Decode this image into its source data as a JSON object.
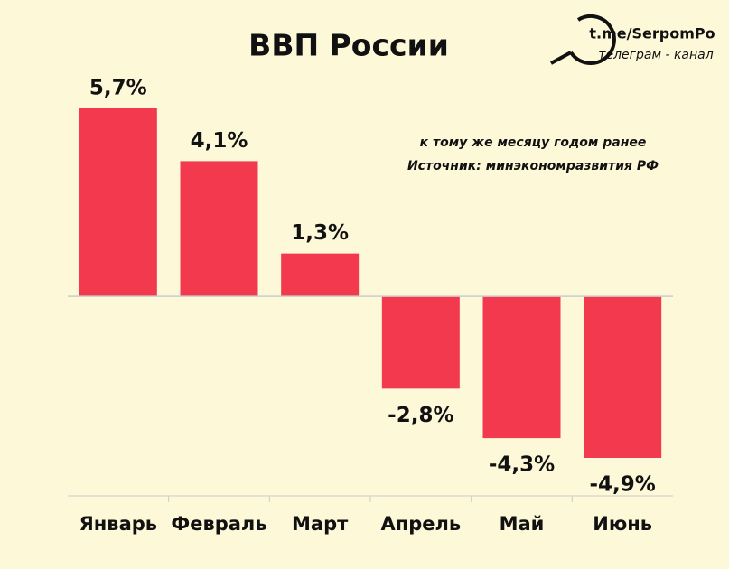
{
  "chart_data": {
    "type": "bar",
    "title": "ВВП России",
    "subtitle": [
      "к тому же месяцу годом ранее",
      "Источник: минэкономразвития РФ"
    ],
    "watermark": [
      "t.me/SerpomPo",
      "телеграм - канал"
    ],
    "categories": [
      "Январь",
      "Февраль",
      "Март",
      "Апрель",
      "Май",
      "Июнь"
    ],
    "values": [
      5.7,
      4.1,
      1.3,
      -2.8,
      -4.3,
      -4.9
    ],
    "value_labels": [
      "5,7%",
      "4,1%",
      "1,3%",
      "-2,8%",
      "-4,3%",
      "-4,9%"
    ],
    "color": "#f2394e"
  }
}
